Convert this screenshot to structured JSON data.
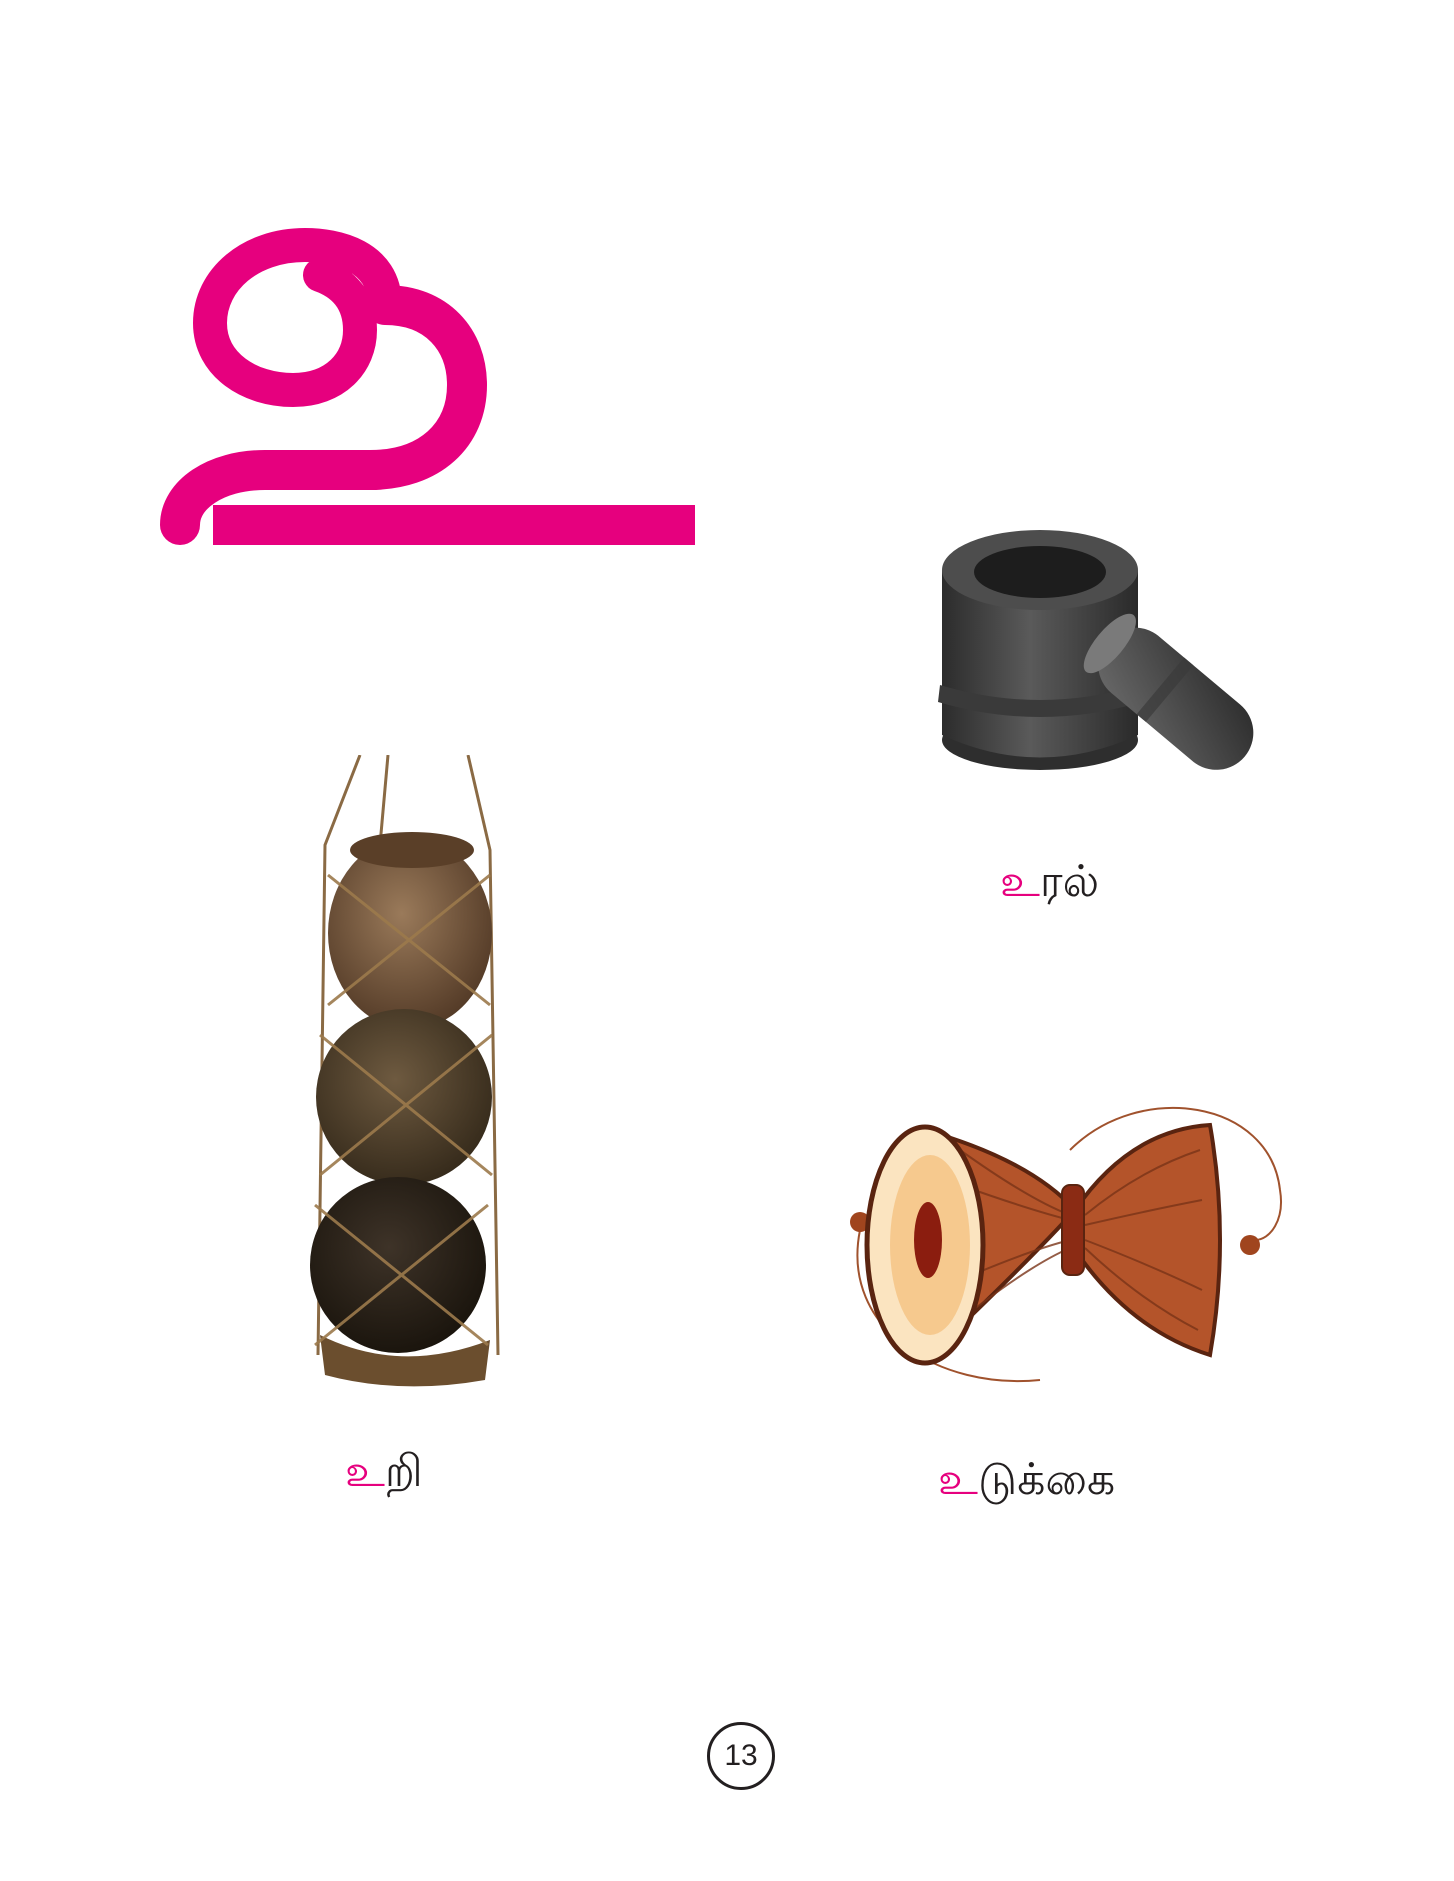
{
  "heading_letter": "உ",
  "accent_color": "#e6007e",
  "items": [
    {
      "image": "stone-mortar-and-pestle",
      "prefix": "உ",
      "suffix": "ரல்"
    },
    {
      "image": "hanging-clay-pots-uri",
      "prefix": "உ",
      "suffix": "றி"
    },
    {
      "image": "udukkai-drum",
      "prefix": "உ",
      "suffix": "டுக்கை"
    }
  ],
  "page_number": "13"
}
